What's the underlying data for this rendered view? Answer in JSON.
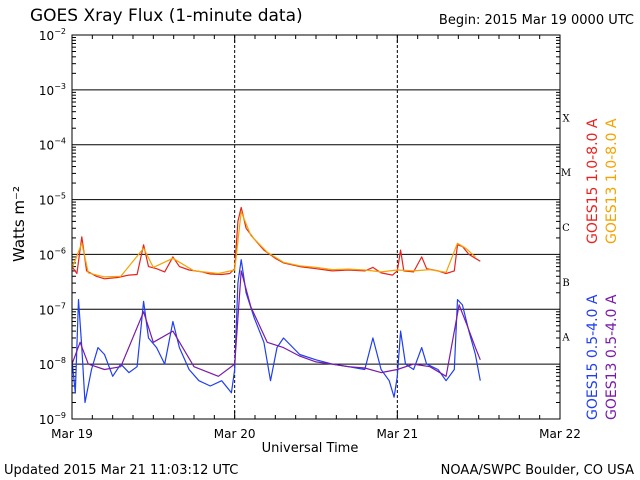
{
  "header": {
    "title": "GOES Xray Flux (1-minute data)",
    "begin": "Begin:  2015 Mar 19 0000 UTC"
  },
  "footer": {
    "updated": "Updated 2015 Mar 21 11:03:12 UTC",
    "credit": "NOAA/SWPC Boulder, CO USA"
  },
  "colors": {
    "goes15_long": "#e8231f",
    "goes13_long": "#f5a300",
    "goes15_short": "#1f3ff0",
    "goes13_short": "#7a1aa8"
  },
  "chart_data": {
    "type": "line",
    "xlabel": "Universal Time",
    "ylabel": "Watts m⁻²",
    "yscale": "log",
    "ylim": [
      1e-09,
      0.01
    ],
    "grid": true,
    "x_ticks": [
      "Mar 19",
      "Mar 20",
      "Mar 21",
      "Mar 22"
    ],
    "y_ticks": [
      {
        "value": 0.01,
        "base": "10",
        "exp": "−2"
      },
      {
        "value": 0.001,
        "base": "10",
        "exp": "−3"
      },
      {
        "value": 0.0001,
        "base": "10",
        "exp": "−4"
      },
      {
        "value": 1e-05,
        "base": "10",
        "exp": "−5"
      },
      {
        "value": 1e-06,
        "base": "10",
        "exp": "−6"
      },
      {
        "value": 1e-07,
        "base": "10",
        "exp": "−7"
      },
      {
        "value": 1e-08,
        "base": "10",
        "exp": "−8"
      },
      {
        "value": 1e-09,
        "base": "10",
        "exp": "−9"
      }
    ],
    "flare_classes": [
      {
        "label": "X",
        "value": 0.0001
      },
      {
        "label": "M",
        "value": 1e-05
      },
      {
        "label": "C",
        "value": 1e-06
      },
      {
        "label": "B",
        "value": 1e-07
      },
      {
        "label": "A",
        "value": 1e-08
      }
    ],
    "x_unit": "days since 2015 Mar 19 00:00 UTC",
    "series": [
      {
        "name": "GOES15 1.0-8.0 A",
        "color": "#e8231f",
        "points": [
          [
            0.0,
            6e-07
          ],
          [
            0.03,
            4.5e-07
          ],
          [
            0.06,
            2.1e-06
          ],
          [
            0.09,
            5e-07
          ],
          [
            0.15,
            4e-07
          ],
          [
            0.2,
            3.6e-07
          ],
          [
            0.28,
            3.8e-07
          ],
          [
            0.35,
            4.2e-07
          ],
          [
            0.4,
            4.3e-07
          ],
          [
            0.44,
            1.5e-06
          ],
          [
            0.47,
            6e-07
          ],
          [
            0.52,
            5.5e-07
          ],
          [
            0.57,
            4.8e-07
          ],
          [
            0.62,
            9e-07
          ],
          [
            0.66,
            6e-07
          ],
          [
            0.72,
            5.2e-07
          ],
          [
            0.8,
            4.8e-07
          ],
          [
            0.85,
            4.4e-07
          ],
          [
            0.92,
            4.3e-07
          ],
          [
            0.97,
            4.5e-07
          ],
          [
            1.0,
            5.5e-07
          ],
          [
            1.02,
            4e-06
          ],
          [
            1.04,
            7.2e-06
          ],
          [
            1.07,
            3e-06
          ],
          [
            1.12,
            1.9e-06
          ],
          [
            1.18,
            1.2e-06
          ],
          [
            1.25,
            8.5e-07
          ],
          [
            1.3,
            7e-07
          ],
          [
            1.4,
            6e-07
          ],
          [
            1.5,
            5.5e-07
          ],
          [
            1.6,
            5e-07
          ],
          [
            1.7,
            5.2e-07
          ],
          [
            1.8,
            5e-07
          ],
          [
            1.85,
            5.8e-07
          ],
          [
            1.9,
            4.6e-07
          ],
          [
            1.97,
            4.2e-07
          ],
          [
            2.0,
            5e-07
          ],
          [
            2.02,
            1.2e-06
          ],
          [
            2.04,
            5e-07
          ],
          [
            2.1,
            4.8e-07
          ],
          [
            2.15,
            9e-07
          ],
          [
            2.18,
            5.5e-07
          ],
          [
            2.25,
            5e-07
          ],
          [
            2.3,
            4.5e-07
          ],
          [
            2.35,
            5e-07
          ],
          [
            2.37,
            1.5e-06
          ],
          [
            2.4,
            1.4e-06
          ],
          [
            2.44,
            1e-06
          ],
          [
            2.48,
            8.5e-07
          ],
          [
            2.51,
            7.5e-07
          ]
        ]
      },
      {
        "name": "GOES13 1.0-8.0 A",
        "color": "#f5a300",
        "points": [
          [
            0.0,
            5.5e-07
          ],
          [
            0.06,
            1.6e-06
          ],
          [
            0.1,
            4.6e-07
          ],
          [
            0.2,
            3.9e-07
          ],
          [
            0.3,
            4e-07
          ],
          [
            0.44,
            1.3e-06
          ],
          [
            0.5,
            5.8e-07
          ],
          [
            0.62,
            8.5e-07
          ],
          [
            0.75,
            5e-07
          ],
          [
            0.9,
            4.5e-07
          ],
          [
            1.0,
            5.2e-07
          ],
          [
            1.04,
            6e-06
          ],
          [
            1.1,
            2.2e-06
          ],
          [
            1.2,
            1.1e-06
          ],
          [
            1.3,
            7.2e-07
          ],
          [
            1.4,
            6.2e-07
          ],
          [
            1.5,
            5.8e-07
          ],
          [
            1.6,
            5.3e-07
          ],
          [
            1.7,
            5.4e-07
          ],
          [
            1.8,
            5.2e-07
          ],
          [
            1.9,
            4.8e-07
          ],
          [
            2.0,
            5.2e-07
          ],
          [
            2.1,
            5e-07
          ],
          [
            2.2,
            5.3e-07
          ],
          [
            2.3,
            4.7e-07
          ],
          [
            2.37,
            1.6e-06
          ],
          [
            2.42,
            1.3e-06
          ],
          [
            2.48,
            9e-07
          ]
        ]
      },
      {
        "name": "GOES15 0.5-4.0 A",
        "color": "#1f3ff0",
        "points": [
          [
            0.0,
            1.2e-08
          ],
          [
            0.02,
            3e-09
          ],
          [
            0.04,
            1.5e-07
          ],
          [
            0.06,
            2e-08
          ],
          [
            0.08,
            2e-09
          ],
          [
            0.12,
            8e-09
          ],
          [
            0.16,
            2e-08
          ],
          [
            0.2,
            1.5e-08
          ],
          [
            0.25,
            6e-09
          ],
          [
            0.3,
            1e-08
          ],
          [
            0.35,
            7e-09
          ],
          [
            0.4,
            9e-09
          ],
          [
            0.44,
            1.4e-07
          ],
          [
            0.47,
            3e-08
          ],
          [
            0.52,
            2e-08
          ],
          [
            0.57,
            1e-08
          ],
          [
            0.62,
            6e-08
          ],
          [
            0.66,
            2e-08
          ],
          [
            0.72,
            8e-09
          ],
          [
            0.78,
            5e-09
          ],
          [
            0.85,
            4e-09
          ],
          [
            0.92,
            5e-09
          ],
          [
            0.98,
            3e-09
          ],
          [
            1.0,
            8e-09
          ],
          [
            1.02,
            3e-07
          ],
          [
            1.04,
            8e-07
          ],
          [
            1.07,
            2e-07
          ],
          [
            1.12,
            7e-08
          ],
          [
            1.18,
            2.5e-08
          ],
          [
            1.22,
            5e-09
          ],
          [
            1.26,
            2e-08
          ],
          [
            1.3,
            3e-08
          ],
          [
            1.4,
            1.5e-08
          ],
          [
            1.5,
            1.2e-08
          ],
          [
            1.6,
            1e-08
          ],
          [
            1.7,
            9e-09
          ],
          [
            1.8,
            8e-09
          ],
          [
            1.85,
            3e-08
          ],
          [
            1.9,
            8e-09
          ],
          [
            1.95,
            5e-09
          ],
          [
            1.98,
            2.5e-09
          ],
          [
            2.0,
            6e-09
          ],
          [
            2.02,
            4e-08
          ],
          [
            2.05,
            1e-08
          ],
          [
            2.1,
            8e-09
          ],
          [
            2.15,
            2e-08
          ],
          [
            2.18,
            1e-08
          ],
          [
            2.25,
            8e-09
          ],
          [
            2.3,
            5e-09
          ],
          [
            2.35,
            8e-09
          ],
          [
            2.37,
            1.5e-07
          ],
          [
            2.4,
            1.2e-07
          ],
          [
            2.44,
            4e-08
          ],
          [
            2.48,
            1.5e-08
          ],
          [
            2.51,
            5e-09
          ]
        ]
      },
      {
        "name": "GOES13 0.5-4.0 A",
        "color": "#7a1aa8",
        "points": [
          [
            0.0,
            1e-08
          ],
          [
            0.05,
            2.5e-08
          ],
          [
            0.1,
            1e-08
          ],
          [
            0.2,
            8e-09
          ],
          [
            0.3,
            9e-09
          ],
          [
            0.44,
            9e-08
          ],
          [
            0.5,
            2.5e-08
          ],
          [
            0.62,
            4e-08
          ],
          [
            0.75,
            9e-09
          ],
          [
            0.9,
            6e-09
          ],
          [
            1.0,
            1e-08
          ],
          [
            1.04,
            5e-07
          ],
          [
            1.1,
            1.1e-07
          ],
          [
            1.2,
            2.5e-08
          ],
          [
            1.3,
            2e-08
          ],
          [
            1.4,
            1.4e-08
          ],
          [
            1.5,
            1.1e-08
          ],
          [
            1.6,
            1e-08
          ],
          [
            1.7,
            9e-09
          ],
          [
            1.8,
            8.5e-09
          ],
          [
            1.9,
            7e-09
          ],
          [
            2.0,
            8e-09
          ],
          [
            2.1,
            1e-08
          ],
          [
            2.2,
            9e-09
          ],
          [
            2.3,
            6e-09
          ],
          [
            2.38,
            1.2e-07
          ],
          [
            2.43,
            5e-08
          ],
          [
            2.48,
            2e-08
          ],
          [
            2.51,
            1.2e-08
          ]
        ]
      }
    ]
  }
}
